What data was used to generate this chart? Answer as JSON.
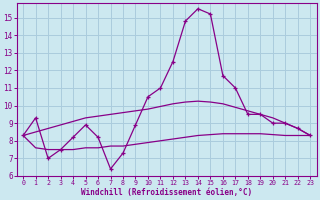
{
  "xlabel": "Windchill (Refroidissement éolien,°C)",
  "bg_color": "#cce8f0",
  "line_color": "#880088",
  "grid_color": "#aaccdd",
  "xlim": [
    -0.5,
    23.5
  ],
  "ylim": [
    6.0,
    15.8
  ],
  "yticks": [
    6,
    7,
    8,
    9,
    10,
    11,
    12,
    13,
    14,
    15
  ],
  "xticks": [
    0,
    1,
    2,
    3,
    4,
    5,
    6,
    7,
    8,
    9,
    10,
    11,
    12,
    13,
    14,
    15,
    16,
    17,
    18,
    19,
    20,
    21,
    22,
    23
  ],
  "line1_x": [
    0,
    1,
    2,
    3,
    4,
    5,
    6,
    7,
    8,
    9,
    10,
    11,
    12,
    13,
    14,
    15,
    16,
    17,
    18,
    19,
    20,
    21,
    22,
    23
  ],
  "line1_y": [
    8.3,
    9.3,
    7.0,
    7.5,
    8.2,
    8.9,
    8.2,
    6.4,
    7.3,
    8.9,
    10.5,
    11.0,
    12.5,
    14.8,
    15.5,
    15.2,
    11.7,
    11.0,
    9.5,
    9.5,
    9.0,
    9.0,
    8.7,
    8.3
  ],
  "line2_x": [
    0,
    1,
    2,
    3,
    4,
    5,
    6,
    7,
    8,
    9,
    10,
    11,
    12,
    13,
    14,
    15,
    16,
    17,
    18,
    19,
    20,
    21,
    22,
    23
  ],
  "line2_y": [
    8.3,
    8.5,
    8.7,
    8.9,
    9.1,
    9.3,
    9.4,
    9.5,
    9.6,
    9.7,
    9.8,
    9.95,
    10.1,
    10.2,
    10.25,
    10.2,
    10.1,
    9.9,
    9.7,
    9.5,
    9.3,
    9.0,
    8.7,
    8.3
  ],
  "line3_x": [
    0,
    1,
    2,
    3,
    4,
    5,
    6,
    7,
    8,
    9,
    10,
    11,
    12,
    13,
    14,
    15,
    16,
    17,
    18,
    19,
    20,
    21,
    22,
    23
  ],
  "line3_y": [
    8.3,
    7.6,
    7.5,
    7.5,
    7.5,
    7.6,
    7.6,
    7.7,
    7.7,
    7.8,
    7.9,
    8.0,
    8.1,
    8.2,
    8.3,
    8.35,
    8.4,
    8.4,
    8.4,
    8.4,
    8.35,
    8.3,
    8.3,
    8.3
  ]
}
